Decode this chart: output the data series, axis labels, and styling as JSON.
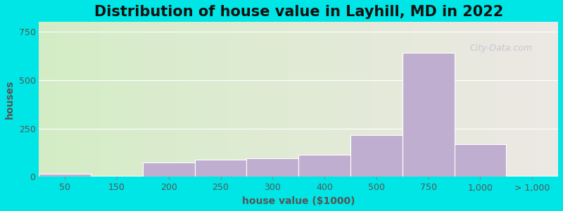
{
  "title": "Distribution of house value in Layhill, MD in 2022",
  "xlabel": "house value ($1000)",
  "ylabel": "houses",
  "tick_labels": [
    "50",
    "150",
    "200",
    "250",
    "300",
    "400",
    "500",
    "750",
    "1,000",
    "> 1,000"
  ],
  "bar_heights": [
    15,
    5,
    75,
    90,
    95,
    115,
    215,
    640,
    170,
    5
  ],
  "bar_color": "#c0aed0",
  "bar_edgecolor": "#ffffff",
  "ylim": [
    0,
    800
  ],
  "yticks": [
    0,
    250,
    500,
    750
  ],
  "background_outer": "#00e5e5",
  "background_inner_left": "#d4edc6",
  "background_inner_right": "#ede8e4",
  "grid_color": "#ffffff",
  "title_fontsize": 15,
  "axis_fontsize": 10,
  "tick_fontsize": 9,
  "watermark_text": "City-Data.com",
  "bar_positions": [
    0,
    1,
    2,
    3,
    4,
    5,
    6,
    7,
    8,
    9
  ],
  "tick_positions": [
    0.5,
    1.5,
    2.5,
    3.5,
    4.5,
    5.5,
    6.5,
    7.5,
    8.5,
    9.5
  ],
  "xlim": [
    0,
    10
  ]
}
